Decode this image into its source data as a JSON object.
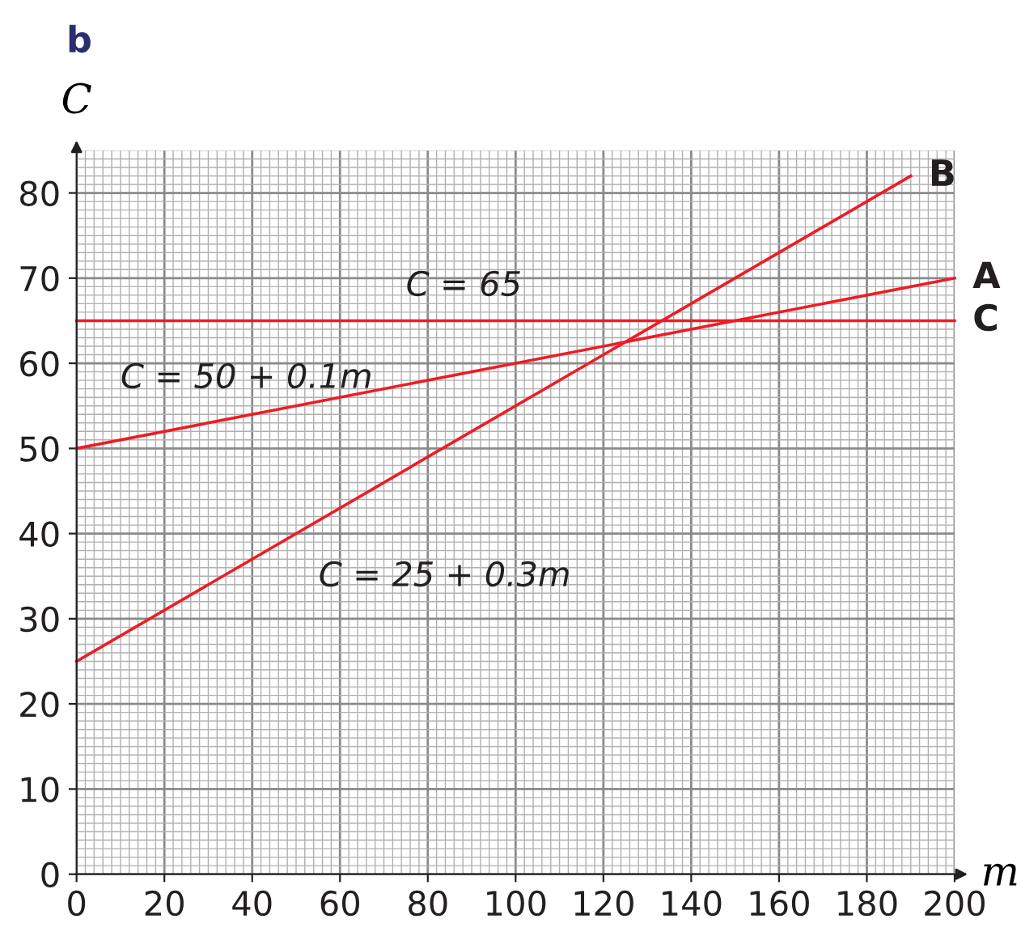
{
  "chart_data": {
    "type": "line",
    "title": "b",
    "xlabel": "m",
    "ylabel": "C",
    "series": [
      {
        "name": "A",
        "color": "#ee1c25",
        "x": [
          0,
          200
        ],
        "values": [
          50,
          70
        ]
      },
      {
        "name": "B",
        "color": "#ee1c25",
        "x": [
          0,
          190
        ],
        "values": [
          25,
          82
        ]
      },
      {
        "name": "C",
        "color": "#ee1c25",
        "x": [
          0,
          200
        ],
        "values": [
          65,
          65
        ]
      }
    ],
    "annotations": [
      {
        "text": "C = 65",
        "x": 75,
        "y": 65
      },
      {
        "text": "C = 50 + 0.1m",
        "x": 10,
        "y": 51
      },
      {
        "text": "C = 25 + 0.3m",
        "x": 50,
        "y": 40
      }
    ],
    "xlim": [
      0,
      200
    ],
    "ylim": [
      0,
      85
    ],
    "xticks": [
      0,
      20,
      40,
      60,
      80,
      100,
      120,
      140,
      160,
      180,
      200
    ],
    "yticks": [
      0,
      10,
      20,
      30,
      40,
      50,
      60,
      70,
      80
    ],
    "grid": true,
    "marker": "none",
    "line_style": "solid",
    "legend": false
  }
}
